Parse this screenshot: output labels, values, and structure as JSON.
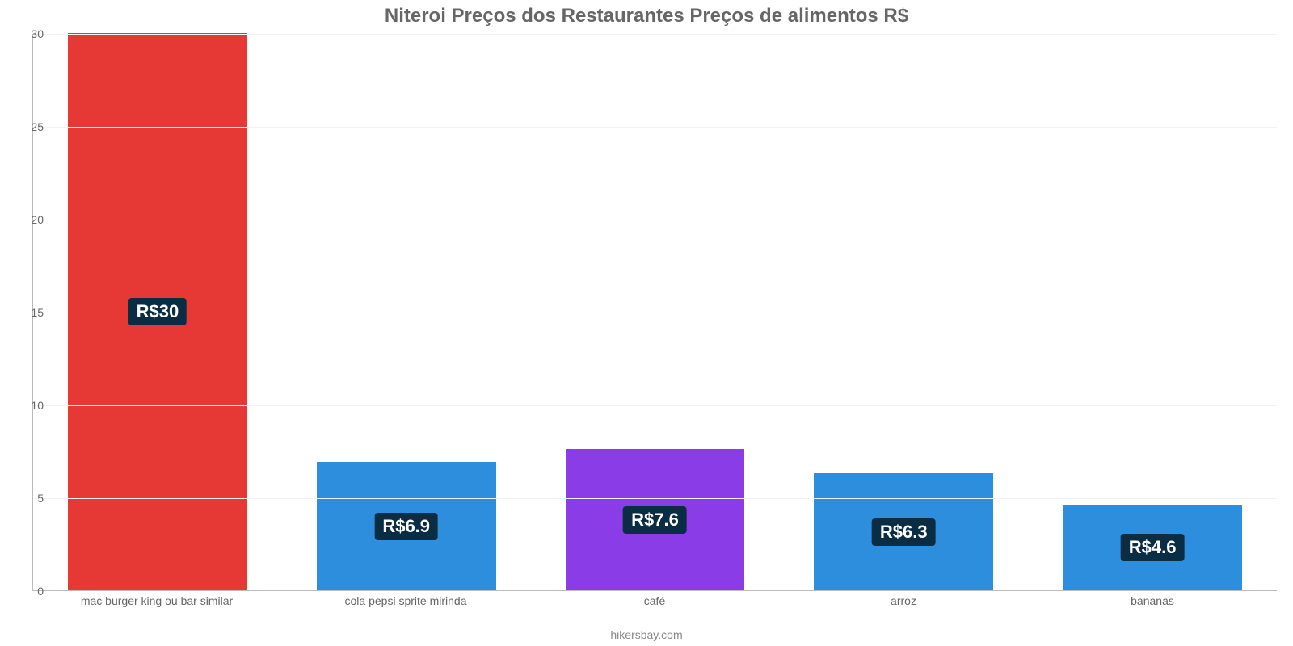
{
  "chart": {
    "type": "bar",
    "title": "Niteroi Preços dos Restaurantes Preços de alimentos R$",
    "title_fontsize": 24,
    "title_color": "#666666",
    "footer": "hikersbay.com",
    "footer_fontsize": 14,
    "footer_color": "#888888",
    "background_color": "#ffffff",
    "grid_color": "#f2f2f2",
    "axis_color": "#bbbbbb",
    "tick_fontsize": 14,
    "tick_color": "#666666",
    "xlabel_fontsize": 14,
    "xlabel_color": "#666666",
    "ylim": [
      0,
      30
    ],
    "ytick_step": 5,
    "bar_width": 0.72,
    "value_badge": {
      "bg": "#0b2d44",
      "color": "#ffffff",
      "fontsize": 22,
      "radius": 4
    },
    "categories": [
      "mac burger king ou bar similar",
      "cola pepsi sprite mirinda",
      "café",
      "arroz",
      "bananas"
    ],
    "values": [
      30,
      6.9,
      7.6,
      6.3,
      4.6
    ],
    "value_labels": [
      "R$30",
      "R$6.9",
      "R$7.6",
      "R$6.3",
      "R$4.6"
    ],
    "bar_colors": [
      "#e63935",
      "#2e8ede",
      "#8a3ce6",
      "#2e8ede",
      "#2e8ede"
    ]
  }
}
